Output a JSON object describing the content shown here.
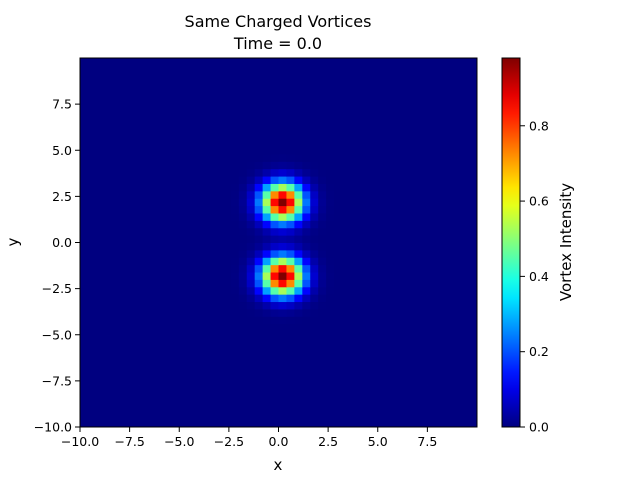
{
  "chart_data": {
    "type": "heatmap",
    "title": "Same Charged Vortices",
    "subtitle": "Time = 0.0",
    "xlabel": "x",
    "ylabel": "y",
    "colorbar_label": "Vortex Intensity",
    "colormap": "jet",
    "xlim": [
      -10,
      10
    ],
    "ylim": [
      -10,
      10
    ],
    "clim": [
      0,
      0.98
    ],
    "grid_cells": 50,
    "x_ticks": [
      "−10.0",
      "−7.5",
      "−5.0",
      "−2.5",
      "0.0",
      "2.5",
      "5.0",
      "7.5"
    ],
    "x_tick_values": [
      -10,
      -7.5,
      -5,
      -2.5,
      0,
      2.5,
      5,
      7.5
    ],
    "y_ticks": [
      "−10.0",
      "−7.5",
      "−5.0",
      "−2.5",
      "0.0",
      "2.5",
      "5.0",
      "7.5"
    ],
    "y_tick_values": [
      -10,
      -7.5,
      -5,
      -2.5,
      0,
      2.5,
      5,
      7.5
    ],
    "colorbar_ticks": [
      "0.0",
      "0.2",
      "0.4",
      "0.6",
      "0.8"
    ],
    "colorbar_tick_values": [
      0,
      0.2,
      0.4,
      0.6,
      0.8
    ],
    "vortices": [
      {
        "x": 0,
        "y": 2,
        "amplitude": 1.0,
        "width": 1.0
      },
      {
        "x": 0,
        "y": -2,
        "amplitude": 1.0,
        "width": 1.0
      }
    ]
  }
}
